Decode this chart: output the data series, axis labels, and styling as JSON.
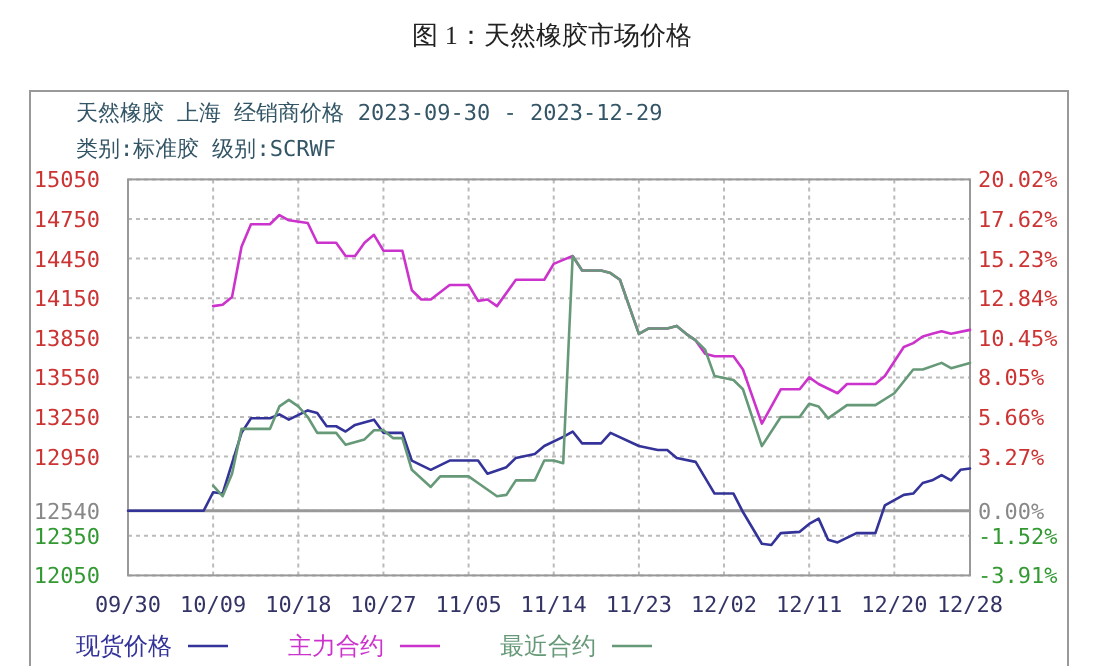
{
  "chart_data": {
    "type": "line",
    "title": "图 1：天然橡胶市场价格",
    "subtitle": "天然橡胶 上海 经销商价格 2023-09-30 - 2023-12-29\n类别:标准胶 级别:SCRWF",
    "xlim": [
      "2023-09-30",
      "2023-12-28"
    ],
    "xticks": [
      {
        "value": "2023-09-30",
        "label": "09/30"
      },
      {
        "value": "2023-10-09",
        "label": "10/09"
      },
      {
        "value": "2023-10-18",
        "label": "10/18"
      },
      {
        "value": "2023-10-27",
        "label": "10/27"
      },
      {
        "value": "2023-11-05",
        "label": "11/05"
      },
      {
        "value": "2023-11-14",
        "label": "11/14"
      },
      {
        "value": "2023-11-23",
        "label": "11/23"
      },
      {
        "value": "2023-12-02",
        "label": "12/02"
      },
      {
        "value": "2023-12-11",
        "label": "12/11"
      },
      {
        "value": "2023-12-20",
        "label": "12/20"
      },
      {
        "value": "2023-12-28",
        "label": "12/28"
      }
    ],
    "ylim": [
      12050,
      15050
    ],
    "yticks": [
      15050,
      14750,
      14450,
      14150,
      13850,
      13550,
      13250,
      12950,
      12540,
      12350,
      12050
    ],
    "y2lim": [
      -3.91,
      20.02
    ],
    "y2ticks": [
      {
        "value": 20.02,
        "label": "20.02%"
      },
      {
        "value": 17.62,
        "label": "17.62%"
      },
      {
        "value": 15.23,
        "label": "15.23%"
      },
      {
        "value": 12.84,
        "label": "12.84%"
      },
      {
        "value": 10.45,
        "label": "10.45%"
      },
      {
        "value": 8.05,
        "label": "8.05%"
      },
      {
        "value": 5.66,
        "label": "5.66%"
      },
      {
        "value": 3.27,
        "label": "3.27%"
      },
      {
        "value": 0,
        "label": "0.00%"
      },
      {
        "value": -1.52,
        "label": "-1.52%"
      },
      {
        "value": -3.91,
        "label": "-3.91%"
      }
    ],
    "ref_lines": [
      {
        "axis": "y",
        "value": 12540,
        "color": "#999999"
      }
    ],
    "grid": true,
    "legend": "bottom",
    "line_style": "solid",
    "series": [
      {
        "name": "现货价格",
        "color": "#333399",
        "x": [
          "2023-09-30",
          "2023-10-08",
          "2023-10-09",
          "2023-10-10",
          "2023-10-12",
          "2023-10-13",
          "2023-10-15",
          "2023-10-16",
          "2023-10-17",
          "2023-10-19",
          "2023-10-20",
          "2023-10-21",
          "2023-10-22",
          "2023-10-23",
          "2023-10-24",
          "2023-10-26",
          "2023-10-27",
          "2023-10-29",
          "2023-10-30",
          "2023-11-01",
          "2023-11-03",
          "2023-11-06",
          "2023-11-07",
          "2023-11-09",
          "2023-11-10",
          "2023-11-12",
          "2023-11-13",
          "2023-11-15",
          "2023-11-16",
          "2023-11-17",
          "2023-11-19",
          "2023-11-20",
          "2023-11-23",
          "2023-11-25",
          "2023-11-26",
          "2023-11-27",
          "2023-11-29",
          "2023-12-01",
          "2023-12-03",
          "2023-12-04",
          "2023-12-06",
          "2023-12-07",
          "2023-12-08",
          "2023-12-10",
          "2023-12-11",
          "2023-12-12",
          "2023-12-13",
          "2023-12-14",
          "2023-12-16",
          "2023-12-18",
          "2023-12-19",
          "2023-12-21",
          "2023-12-22",
          "2023-12-23",
          "2023-12-24",
          "2023-12-25",
          "2023-12-26",
          "2023-12-27",
          "2023-12-28"
        ],
        "values": [
          12540,
          12540,
          12680,
          12670,
          13130,
          13240,
          13240,
          13270,
          13230,
          13300,
          13280,
          13180,
          13180,
          13140,
          13190,
          13230,
          13130,
          13130,
          12920,
          12850,
          12920,
          12920,
          12820,
          12870,
          12940,
          12970,
          13030,
          13100,
          13140,
          13050,
          13050,
          13130,
          13030,
          13000,
          13000,
          12940,
          12910,
          12670,
          12670,
          12530,
          12290,
          12280,
          12370,
          12380,
          12440,
          12480,
          12320,
          12300,
          12370,
          12370,
          12580,
          12660,
          12670,
          12750,
          12770,
          12810,
          12770,
          12850,
          12860
        ]
      },
      {
        "name": "主力合约",
        "color": "#cc33cc",
        "x": [
          "2023-10-09",
          "2023-10-10",
          "2023-10-11",
          "2023-10-12",
          "2023-10-13",
          "2023-10-15",
          "2023-10-16",
          "2023-10-17",
          "2023-10-19",
          "2023-10-20",
          "2023-10-22",
          "2023-10-23",
          "2023-10-24",
          "2023-10-25",
          "2023-10-26",
          "2023-10-27",
          "2023-10-29",
          "2023-10-30",
          "2023-10-31",
          "2023-11-01",
          "2023-11-03",
          "2023-11-05",
          "2023-11-06",
          "2023-11-07",
          "2023-11-08",
          "2023-11-10",
          "2023-11-13",
          "2023-11-14",
          "2023-11-15",
          "2023-11-16",
          "2023-11-17",
          "2023-11-19",
          "2023-11-20",
          "2023-11-21",
          "2023-11-23",
          "2023-11-24",
          "2023-11-26",
          "2023-11-27",
          "2023-11-28",
          "2023-11-29",
          "2023-11-30",
          "2023-12-01",
          "2023-12-03",
          "2023-12-04",
          "2023-12-06",
          "2023-12-08",
          "2023-12-10",
          "2023-12-11",
          "2023-12-12",
          "2023-12-14",
          "2023-12-15",
          "2023-12-18",
          "2023-12-19",
          "2023-12-21",
          "2023-12-22",
          "2023-12-23",
          "2023-12-24",
          "2023-12-25",
          "2023-12-26",
          "2023-12-28"
        ],
        "values": [
          14090,
          14100,
          14160,
          14540,
          14710,
          14710,
          14780,
          14740,
          14720,
          14570,
          14570,
          14470,
          14470,
          14570,
          14630,
          14510,
          14510,
          14210,
          14140,
          14140,
          14250,
          14250,
          14130,
          14140,
          14090,
          14290,
          14290,
          14410,
          14440,
          14470,
          14360,
          14360,
          14340,
          14290,
          13880,
          13920,
          13920,
          13940,
          13880,
          13830,
          13730,
          13710,
          13710,
          13610,
          13200,
          13460,
          13460,
          13550,
          13500,
          13430,
          13500,
          13500,
          13560,
          13780,
          13810,
          13860,
          13880,
          13900,
          13880,
          13910
        ]
      },
      {
        "name": "最近合约",
        "color": "#669977",
        "x": [
          "2023-10-09",
          "2023-10-10",
          "2023-10-11",
          "2023-10-12",
          "2023-10-15",
          "2023-10-16",
          "2023-10-17",
          "2023-10-18",
          "2023-10-19",
          "2023-10-20",
          "2023-10-22",
          "2023-10-23",
          "2023-10-25",
          "2023-10-26",
          "2023-10-27",
          "2023-10-28",
          "2023-10-29",
          "2023-10-30",
          "2023-11-01",
          "2023-11-02",
          "2023-11-05",
          "2023-11-06",
          "2023-11-08",
          "2023-11-09",
          "2023-11-10",
          "2023-11-12",
          "2023-11-13",
          "2023-11-14",
          "2023-11-15",
          "2023-11-16",
          "2023-11-17",
          "2023-11-19",
          "2023-11-20",
          "2023-11-21",
          "2023-11-23",
          "2023-11-24",
          "2023-11-26",
          "2023-11-27",
          "2023-11-28",
          "2023-11-29",
          "2023-11-30",
          "2023-12-01",
          "2023-12-03",
          "2023-12-04",
          "2023-12-06",
          "2023-12-08",
          "2023-12-10",
          "2023-12-11",
          "2023-12-12",
          "2023-12-13",
          "2023-12-15",
          "2023-12-18",
          "2023-12-20",
          "2023-12-22",
          "2023-12-23",
          "2023-12-25",
          "2023-12-26",
          "2023-12-28"
        ],
        "values": [
          12730,
          12650,
          12820,
          13160,
          13160,
          13330,
          13380,
          13330,
          13250,
          13130,
          13130,
          13040,
          13080,
          13150,
          13150,
          13090,
          13090,
          12850,
          12720,
          12800,
          12800,
          12750,
          12650,
          12660,
          12770,
          12770,
          12920,
          12920,
          12900,
          14470,
          14360,
          14360,
          14340,
          14290,
          13880,
          13920,
          13920,
          13940,
          13880,
          13830,
          13760,
          13560,
          13530,
          13460,
          13030,
          13250,
          13250,
          13350,
          13330,
          13240,
          13340,
          13340,
          13430,
          13610,
          13610,
          13660,
          13620,
          13660
        ]
      }
    ]
  }
}
